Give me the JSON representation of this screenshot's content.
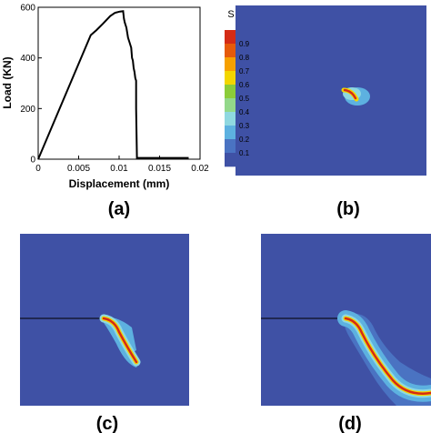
{
  "colors": {
    "field_background": "#3f51a5",
    "contour_levels": [
      "#3f51a5",
      "#4a73c2",
      "#5db1e0",
      "#8fd8e0",
      "#93d88a",
      "#8ccc39",
      "#f3d600",
      "#f6a000",
      "#e65a0a",
      "#d42b16"
    ]
  },
  "chart_data": {
    "type": "line",
    "title": "",
    "xlabel": "Displacement (mm)",
    "ylabel": "Load (KN)",
    "xlim": [
      0,
      0.02
    ],
    "ylim": [
      0,
      600
    ],
    "x_ticks": [
      "0",
      "0.005",
      "0.01",
      "0.015",
      "0.02"
    ],
    "y_ticks": [
      "0",
      "200",
      "400",
      "600"
    ],
    "grid": false,
    "series": [
      {
        "x": [
          0,
          0.0065,
          0.0072,
          0.008,
          0.0089,
          0.0095,
          0.0101,
          0.0105,
          0.0106,
          0.0107,
          0.0109,
          0.0111,
          0.0113,
          0.0115,
          0.0116,
          0.0117,
          0.0118,
          0.0119,
          0.012,
          0.0121,
          0.0121,
          0.0122,
          0.0135,
          0.015,
          0.0165,
          0.018,
          0.0186
        ],
        "y": [
          0,
          490,
          510,
          535,
          565,
          578,
          583,
          585,
          555,
          540,
          520,
          480,
          460,
          440,
          400,
          390,
          360,
          345,
          320,
          310,
          200,
          5,
          5,
          5,
          5,
          5,
          5
        ]
      }
    ]
  },
  "colorbar": {
    "title": "S",
    "ticks": [
      "0.9",
      "0.8",
      "0.7",
      "0.6",
      "0.5",
      "0.4",
      "0.3",
      "0.2",
      "0.1"
    ]
  },
  "panels": {
    "a": "(a)",
    "b": "(b)",
    "c": "(c)",
    "d": "(d)"
  }
}
